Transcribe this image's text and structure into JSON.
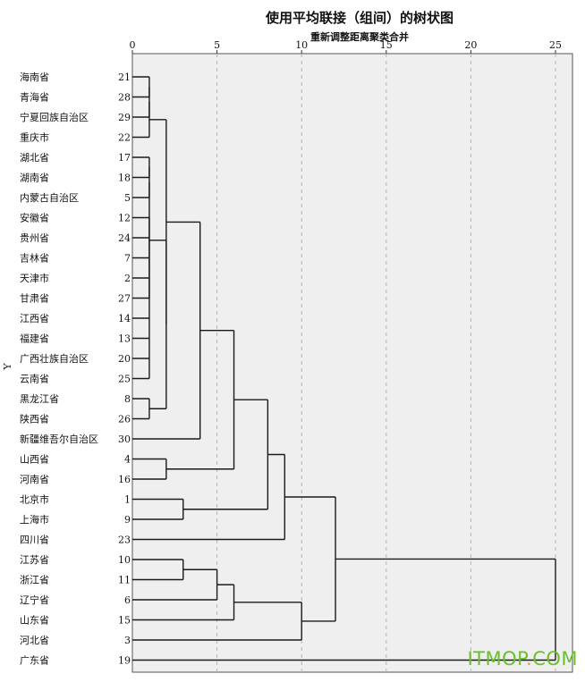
{
  "chart_data": {
    "type": "dendrogram",
    "title": "使用平均联接（组间）的树状图",
    "subtitle": "重新调整距离聚类合并",
    "ylabel": "Y",
    "xlim": [
      0,
      25
    ],
    "xticks": [
      0,
      5,
      10,
      15,
      20,
      25
    ],
    "grid": true,
    "leaves": [
      {
        "label": "海南省",
        "id": "21"
      },
      {
        "label": "青海省",
        "id": "28"
      },
      {
        "label": "宁夏回族自治区",
        "id": "29"
      },
      {
        "label": "重庆市",
        "id": "22"
      },
      {
        "label": "湖北省",
        "id": "17"
      },
      {
        "label": "湖南省",
        "id": "18"
      },
      {
        "label": "内蒙古自治区",
        "id": "5"
      },
      {
        "label": "安徽省",
        "id": "12"
      },
      {
        "label": "贵州省",
        "id": "24"
      },
      {
        "label": "吉林省",
        "id": "7"
      },
      {
        "label": "天津市",
        "id": "2"
      },
      {
        "label": "甘肃省",
        "id": "27"
      },
      {
        "label": "江西省",
        "id": "14"
      },
      {
        "label": "福建省",
        "id": "13"
      },
      {
        "label": "广西壮族自治区",
        "id": "20"
      },
      {
        "label": "云南省",
        "id": "25"
      },
      {
        "label": "黑龙江省",
        "id": "8"
      },
      {
        "label": "陕西省",
        "id": "26"
      },
      {
        "label": "新疆维吾尔自治区",
        "id": "30"
      },
      {
        "label": "山西省",
        "id": "4"
      },
      {
        "label": "河南省",
        "id": "16"
      },
      {
        "label": "北京市",
        "id": "1"
      },
      {
        "label": "上海市",
        "id": "9"
      },
      {
        "label": "四川省",
        "id": "23"
      },
      {
        "label": "江苏省",
        "id": "10"
      },
      {
        "label": "浙江省",
        "id": "11"
      },
      {
        "label": "辽宁省",
        "id": "6"
      },
      {
        "label": "山东省",
        "id": "15"
      },
      {
        "label": "河北省",
        "id": "3"
      },
      {
        "label": "广东省",
        "id": "19"
      }
    ],
    "merges": [
      {
        "children": [
          0,
          1
        ],
        "height": 1.0
      },
      {
        "children": [
          4,
          5
        ],
        "height": 1.0
      },
      {
        "children": [
          "m1",
          6
        ],
        "height": 1.0
      },
      {
        "children": [
          7,
          8,
          9,
          10,
          11,
          12,
          13,
          14,
          15
        ],
        "height": 1.0
      },
      {
        "children": [
          "m0",
          2
        ],
        "height": 1.0
      },
      {
        "children": [
          "m4",
          3
        ],
        "height": 1.0
      },
      {
        "children": [
          "m2",
          "m3"
        ],
        "height": 1.0
      },
      {
        "children": [
          16,
          17
        ],
        "height": 1.0
      },
      {
        "children": [
          "m6",
          "m7"
        ],
        "height": 2.0
      },
      {
        "children": [
          "m5",
          "m8"
        ],
        "height": 2.0
      },
      {
        "children": [
          19,
          20
        ],
        "height": 2.0
      },
      {
        "children": [
          21,
          22
        ],
        "height": 3.0
      },
      {
        "children": [
          24,
          25
        ],
        "height": 3.0
      },
      {
        "children": [
          "m9",
          18
        ],
        "height": 4.0
      },
      {
        "children": [
          "m12",
          26
        ],
        "height": 5.0
      },
      {
        "children": [
          "m13",
          "m10"
        ],
        "height": 6.0
      },
      {
        "children": [
          "m14",
          27
        ],
        "height": 6.0
      },
      {
        "children": [
          "m15",
          "m11"
        ],
        "height": 8.0
      },
      {
        "children": [
          "m17",
          23
        ],
        "height": 9.0
      },
      {
        "children": [
          "m16",
          28
        ],
        "height": 10.0
      },
      {
        "children": [
          "m18",
          "m19"
        ],
        "height": 12.0
      },
      {
        "children": [
          "m20",
          29
        ],
        "height": 25.0
      }
    ]
  },
  "watermark": {
    "text_main": "ITMOP",
    "text_dot": ".",
    "text_tld": "COM"
  },
  "colors": {
    "plot_bg": "#efefef",
    "line": "#1a1a1a",
    "grid": "#b5b5b5",
    "watermark": "#6bbf2a"
  }
}
